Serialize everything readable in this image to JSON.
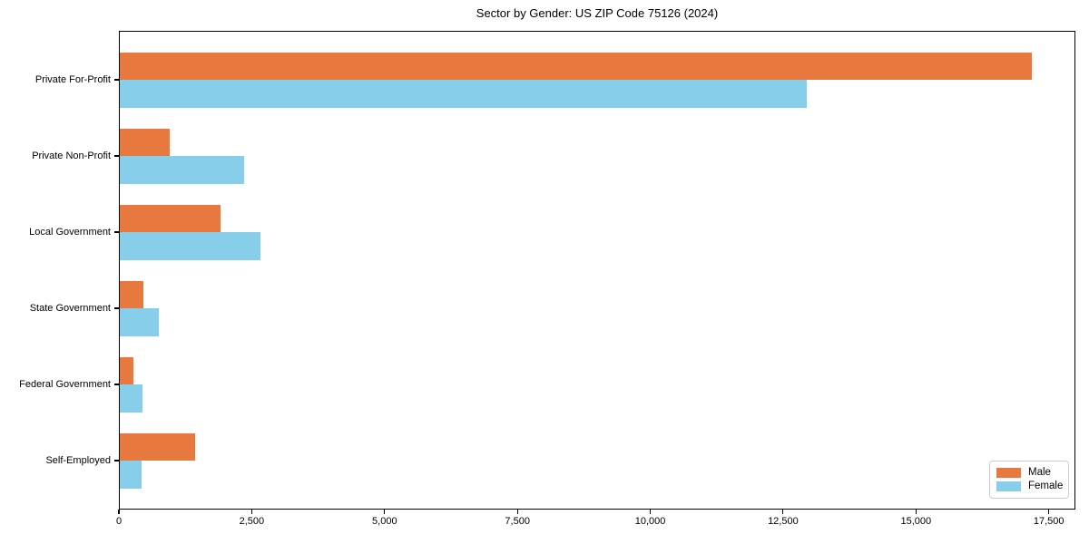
{
  "chart_data": {
    "type": "bar",
    "orientation": "horizontal",
    "title": "Sector by Gender: US ZIP Code 75126 (2024)",
    "categories": [
      "Private For-Profit",
      "Private Non-Profit",
      "Local Government",
      "State Government",
      "Federal Government",
      "Self-Employed"
    ],
    "series": [
      {
        "name": "Male",
        "color": "#e8793e",
        "values": [
          17175,
          960,
          1915,
          460,
          275,
          1435
        ]
      },
      {
        "name": "Female",
        "color": "#87ceeb",
        "values": [
          12940,
          2360,
          2665,
          750,
          445,
          430
        ]
      }
    ],
    "xlabel": "",
    "ylabel": "",
    "xlim": [
      0,
      18000
    ],
    "x_ticks": [
      0,
      2500,
      5000,
      7500,
      10000,
      12500,
      15000,
      17500
    ],
    "x_tick_labels": [
      "0",
      "2,500",
      "5,000",
      "7,500",
      "10,000",
      "12,500",
      "15,000",
      "17,500"
    ],
    "grid": false,
    "legend_position": "lower right",
    "background_color": "#ffffff",
    "spine_color": "#000000"
  }
}
